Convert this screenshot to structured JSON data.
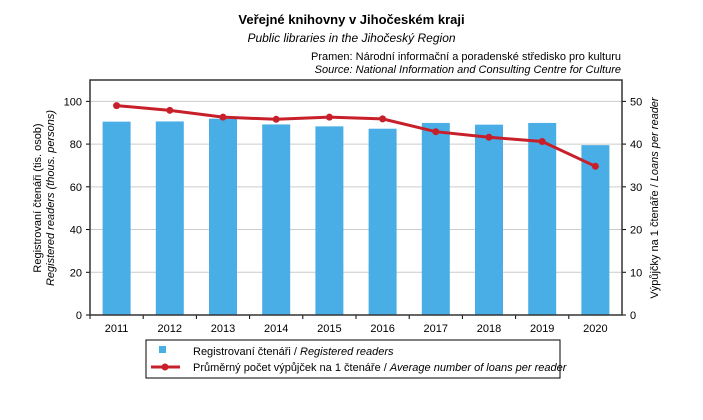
{
  "chart_data": {
    "type": "bar+line",
    "title": "Veřejné knihovny v Jihočeském kraji",
    "subtitle": "Public libraries in the Jihočeský Region",
    "source_cz": "Pramen: Národní informační a poradenské středisko pro kulturu",
    "source_en": "Source: National Information and Consulting Centre for Culture",
    "ylabel_cz": "Registrovaní čtenáři (tis. osob)",
    "ylabel_en": "Registered readers (thous. persons)",
    "y2label_cz": "Výpůjčky na 1 čtenáře / ",
    "y2label_en": "Loans per reader",
    "categories": [
      "2011",
      "2012",
      "2013",
      "2014",
      "2015",
      "2016",
      "2017",
      "2018",
      "2019",
      "2020"
    ],
    "ylim": [
      0,
      110
    ],
    "y_ticks": [
      0,
      20,
      40,
      60,
      80,
      100
    ],
    "y2lim": [
      0,
      55
    ],
    "y2_ticks": [
      0,
      10,
      20,
      30,
      40,
      50
    ],
    "series": [
      {
        "name": "Registrovaní čtenáři / ",
        "name_en": "Registered readers",
        "type": "bar",
        "color": "#4aaee6",
        "values": [
          90.5,
          90.6,
          91.9,
          89.2,
          88.3,
          87.2,
          89.9,
          89.1,
          89.9,
          79.5
        ]
      },
      {
        "name": "Průměrný počet výpůjček na 1 čtenáře / ",
        "name_en": "Average number of loans per reader",
        "type": "line",
        "axis": "right",
        "color": "#c8202a",
        "values": [
          49.0,
          47.9,
          46.3,
          45.8,
          46.3,
          45.9,
          42.9,
          41.6,
          40.6,
          34.8
        ]
      }
    ],
    "legend": "bottom"
  }
}
